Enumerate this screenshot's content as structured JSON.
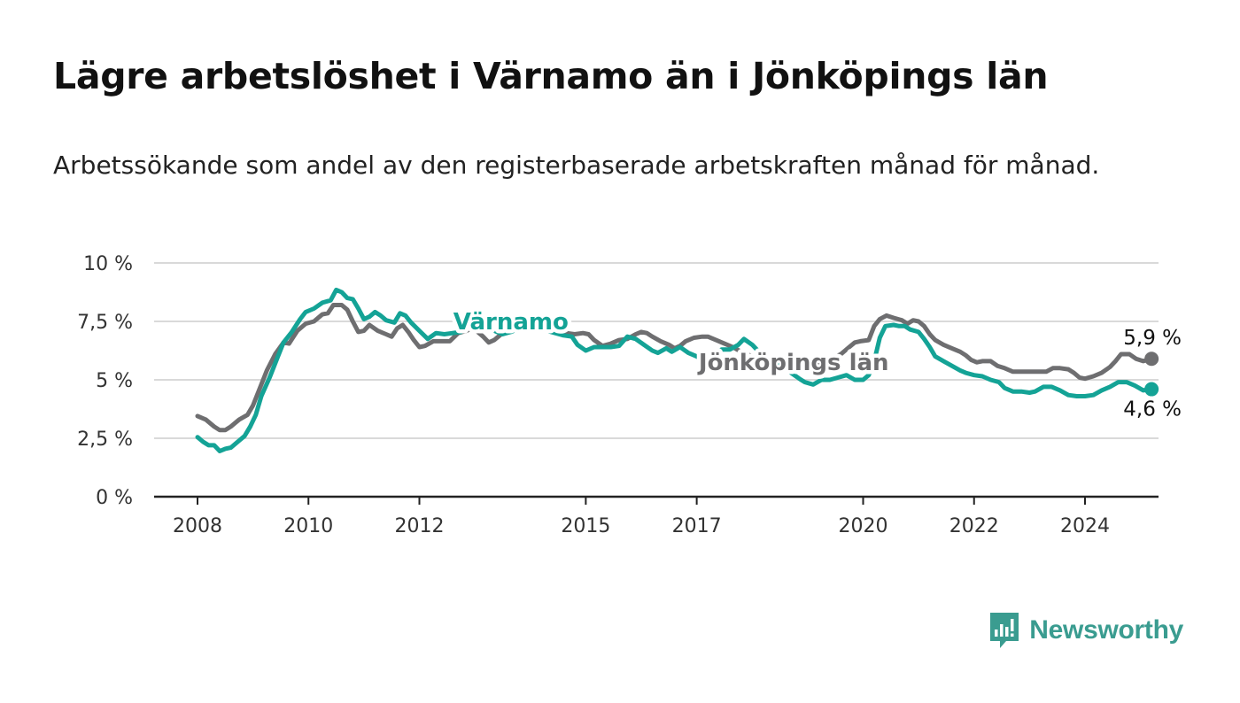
{
  "title": "Lägre arbetslöshet i Värnamo än i Jönköpings län",
  "subtitle": "Arbetssökande som andel av den registerbaserade arbetskraften månad för månad.",
  "brand": {
    "name": "Newsworthy",
    "color": "#3a9c90"
  },
  "chart_data": {
    "type": "line",
    "title": "Lägre arbetslöshet i Värnamo än i Jönköpings län",
    "subtitle": "Arbetssökande som andel av den registerbaserade arbetskraften månad för månad.",
    "xlabel": "",
    "ylabel": "",
    "ylim": [
      0,
      10
    ],
    "xlim": [
      2007.2,
      2025.35
    ],
    "grid": true,
    "y_ticks": [
      {
        "value": 0,
        "label": "0 %"
      },
      {
        "value": 2.5,
        "label": "2,5 %"
      },
      {
        "value": 5,
        "label": "5 %"
      },
      {
        "value": 7.5,
        "label": "7,5 %"
      },
      {
        "value": 10,
        "label": "10 %"
      }
    ],
    "x_ticks": [
      {
        "value": 2008,
        "label": "2008"
      },
      {
        "value": 2010,
        "label": "2010"
      },
      {
        "value": 2012,
        "label": "2012"
      },
      {
        "value": 2015,
        "label": "2015"
      },
      {
        "value": 2017,
        "label": "2017"
      },
      {
        "value": 2020,
        "label": "2020"
      },
      {
        "value": 2022,
        "label": "2022"
      },
      {
        "value": 2024,
        "label": "2024"
      }
    ],
    "series": [
      {
        "name": "Jönköpings län",
        "color": "#6e6e70",
        "end_label": "5,9 %",
        "points": [
          [
            2008.0,
            3.45
          ],
          [
            2008.15,
            3.3
          ],
          [
            2008.3,
            3.0
          ],
          [
            2008.4,
            2.85
          ],
          [
            2008.5,
            2.85
          ],
          [
            2008.6,
            3.0
          ],
          [
            2008.75,
            3.3
          ],
          [
            2008.9,
            3.5
          ],
          [
            2009.0,
            3.9
          ],
          [
            2009.1,
            4.5
          ],
          [
            2009.25,
            5.4
          ],
          [
            2009.4,
            6.1
          ],
          [
            2009.55,
            6.6
          ],
          [
            2009.65,
            6.55
          ],
          [
            2009.8,
            7.1
          ],
          [
            2009.95,
            7.4
          ],
          [
            2010.1,
            7.5
          ],
          [
            2010.25,
            7.8
          ],
          [
            2010.35,
            7.85
          ],
          [
            2010.45,
            8.2
          ],
          [
            2010.6,
            8.2
          ],
          [
            2010.7,
            8.0
          ],
          [
            2010.8,
            7.5
          ],
          [
            2010.9,
            7.05
          ],
          [
            2011.0,
            7.1
          ],
          [
            2011.1,
            7.35
          ],
          [
            2011.25,
            7.1
          ],
          [
            2011.4,
            6.95
          ],
          [
            2011.5,
            6.85
          ],
          [
            2011.6,
            7.2
          ],
          [
            2011.7,
            7.35
          ],
          [
            2011.8,
            7.05
          ],
          [
            2011.9,
            6.7
          ],
          [
            2012.0,
            6.4
          ],
          [
            2012.1,
            6.45
          ],
          [
            2012.25,
            6.65
          ],
          [
            2012.4,
            6.65
          ],
          [
            2012.55,
            6.65
          ],
          [
            2012.7,
            7.0
          ],
          [
            2012.85,
            7.1
          ],
          [
            2012.95,
            7.2
          ],
          [
            2013.05,
            7.05
          ],
          [
            2013.15,
            6.85
          ],
          [
            2013.25,
            6.6
          ],
          [
            2013.35,
            6.7
          ],
          [
            2013.5,
            7.0
          ],
          [
            2013.6,
            7.1
          ],
          [
            2013.75,
            7.15
          ],
          [
            2013.9,
            7.2
          ],
          [
            2014.05,
            7.25
          ],
          [
            2014.2,
            7.2
          ],
          [
            2014.35,
            7.15
          ],
          [
            2014.5,
            7.1
          ],
          [
            2014.65,
            7.0
          ],
          [
            2014.8,
            6.95
          ],
          [
            2014.95,
            7.0
          ],
          [
            2015.05,
            6.95
          ],
          [
            2015.15,
            6.7
          ],
          [
            2015.3,
            6.45
          ],
          [
            2015.45,
            6.55
          ],
          [
            2015.6,
            6.7
          ],
          [
            2015.75,
            6.75
          ],
          [
            2015.9,
            6.95
          ],
          [
            2016.0,
            7.05
          ],
          [
            2016.1,
            7.0
          ],
          [
            2016.2,
            6.85
          ],
          [
            2016.35,
            6.65
          ],
          [
            2016.5,
            6.5
          ],
          [
            2016.6,
            6.35
          ],
          [
            2016.7,
            6.45
          ],
          [
            2016.8,
            6.65
          ],
          [
            2016.95,
            6.8
          ],
          [
            2017.1,
            6.85
          ],
          [
            2017.2,
            6.85
          ],
          [
            2017.35,
            6.7
          ],
          [
            2017.5,
            6.55
          ],
          [
            2017.65,
            6.4
          ],
          [
            2017.8,
            6.2
          ],
          [
            2018.0,
            6.0
          ],
          [
            2018.2,
            5.85
          ],
          [
            2018.4,
            5.7
          ],
          [
            2018.6,
            5.55
          ],
          [
            2018.8,
            5.45
          ],
          [
            2019.0,
            5.5
          ],
          [
            2019.2,
            5.65
          ],
          [
            2019.4,
            5.85
          ],
          [
            2019.6,
            6.1
          ],
          [
            2019.75,
            6.4
          ],
          [
            2019.85,
            6.6
          ],
          [
            2019.95,
            6.65
          ],
          [
            2020.1,
            6.7
          ],
          [
            2020.2,
            7.3
          ],
          [
            2020.3,
            7.6
          ],
          [
            2020.42,
            7.75
          ],
          [
            2020.55,
            7.65
          ],
          [
            2020.7,
            7.55
          ],
          [
            2020.8,
            7.4
          ],
          [
            2020.9,
            7.55
          ],
          [
            2021.0,
            7.5
          ],
          [
            2021.1,
            7.3
          ],
          [
            2021.2,
            6.95
          ],
          [
            2021.3,
            6.7
          ],
          [
            2021.45,
            6.5
          ],
          [
            2021.6,
            6.35
          ],
          [
            2021.75,
            6.2
          ],
          [
            2021.85,
            6.05
          ],
          [
            2021.95,
            5.85
          ],
          [
            2022.05,
            5.75
          ],
          [
            2022.15,
            5.8
          ],
          [
            2022.3,
            5.8
          ],
          [
            2022.42,
            5.6
          ],
          [
            2022.55,
            5.5
          ],
          [
            2022.7,
            5.35
          ],
          [
            2022.85,
            5.35
          ],
          [
            2023.0,
            5.35
          ],
          [
            2023.15,
            5.35
          ],
          [
            2023.3,
            5.35
          ],
          [
            2023.42,
            5.5
          ],
          [
            2023.55,
            5.5
          ],
          [
            2023.7,
            5.45
          ],
          [
            2023.8,
            5.3
          ],
          [
            2023.9,
            5.1
          ],
          [
            2024.0,
            5.05
          ],
          [
            2024.15,
            5.15
          ],
          [
            2024.3,
            5.3
          ],
          [
            2024.45,
            5.55
          ],
          [
            2024.55,
            5.8
          ],
          [
            2024.65,
            6.1
          ],
          [
            2024.8,
            6.1
          ],
          [
            2024.92,
            5.9
          ],
          [
            2025.05,
            5.8
          ],
          [
            2025.2,
            5.9
          ]
        ]
      },
      {
        "name": "Värnamo",
        "color": "#14a396",
        "end_label": "4,6 %",
        "points": [
          [
            2008.0,
            2.55
          ],
          [
            2008.1,
            2.35
          ],
          [
            2008.2,
            2.2
          ],
          [
            2008.3,
            2.2
          ],
          [
            2008.4,
            1.95
          ],
          [
            2008.5,
            2.05
          ],
          [
            2008.6,
            2.1
          ],
          [
            2008.75,
            2.4
          ],
          [
            2008.85,
            2.6
          ],
          [
            2008.95,
            3.0
          ],
          [
            2009.05,
            3.5
          ],
          [
            2009.15,
            4.3
          ],
          [
            2009.3,
            5.1
          ],
          [
            2009.45,
            6.0
          ],
          [
            2009.55,
            6.6
          ],
          [
            2009.7,
            7.05
          ],
          [
            2009.85,
            7.6
          ],
          [
            2009.95,
            7.9
          ],
          [
            2010.1,
            8.05
          ],
          [
            2010.25,
            8.3
          ],
          [
            2010.4,
            8.4
          ],
          [
            2010.5,
            8.85
          ],
          [
            2010.6,
            8.75
          ],
          [
            2010.7,
            8.5
          ],
          [
            2010.8,
            8.45
          ],
          [
            2010.9,
            8.05
          ],
          [
            2011.0,
            7.6
          ],
          [
            2011.1,
            7.7
          ],
          [
            2011.2,
            7.9
          ],
          [
            2011.3,
            7.75
          ],
          [
            2011.4,
            7.55
          ],
          [
            2011.55,
            7.45
          ],
          [
            2011.65,
            7.85
          ],
          [
            2011.75,
            7.75
          ],
          [
            2011.85,
            7.45
          ],
          [
            2012.0,
            7.1
          ],
          [
            2012.15,
            6.75
          ],
          [
            2012.3,
            7.0
          ],
          [
            2012.45,
            6.95
          ],
          [
            2012.6,
            7.0
          ],
          [
            2012.75,
            7.05
          ],
          [
            2012.9,
            7.35
          ],
          [
            2013.05,
            7.25
          ],
          [
            2013.2,
            7.2
          ],
          [
            2013.35,
            7.1
          ],
          [
            2013.5,
            6.95
          ],
          [
            2013.65,
            7.05
          ],
          [
            2013.8,
            7.2
          ],
          [
            2014.0,
            7.3
          ],
          [
            2014.15,
            7.2
          ],
          [
            2014.3,
            7.1
          ],
          [
            2014.45,
            7.0
          ],
          [
            2014.6,
            6.9
          ],
          [
            2014.75,
            6.85
          ],
          [
            2014.85,
            6.5
          ],
          [
            2015.0,
            6.25
          ],
          [
            2015.15,
            6.4
          ],
          [
            2015.3,
            6.4
          ],
          [
            2015.45,
            6.4
          ],
          [
            2015.6,
            6.45
          ],
          [
            2015.75,
            6.85
          ],
          [
            2015.9,
            6.75
          ],
          [
            2016.05,
            6.5
          ],
          [
            2016.2,
            6.25
          ],
          [
            2016.3,
            6.15
          ],
          [
            2016.45,
            6.35
          ],
          [
            2016.55,
            6.2
          ],
          [
            2016.7,
            6.4
          ],
          [
            2016.85,
            6.15
          ],
          [
            2017.0,
            6.0
          ],
          [
            2017.15,
            5.8
          ],
          [
            2017.3,
            6.0
          ],
          [
            2017.45,
            6.3
          ],
          [
            2017.6,
            6.3
          ],
          [
            2017.75,
            6.5
          ],
          [
            2017.85,
            6.75
          ],
          [
            2018.0,
            6.5
          ],
          [
            2018.2,
            6.0
          ],
          [
            2018.4,
            5.7
          ],
          [
            2018.55,
            5.55
          ],
          [
            2018.7,
            5.3
          ],
          [
            2018.85,
            5.05
          ],
          [
            2018.95,
            4.9
          ],
          [
            2019.1,
            4.8
          ],
          [
            2019.25,
            5.0
          ],
          [
            2019.4,
            5.0
          ],
          [
            2019.55,
            5.1
          ],
          [
            2019.7,
            5.2
          ],
          [
            2019.85,
            5.0
          ],
          [
            2020.0,
            5.0
          ],
          [
            2020.1,
            5.2
          ],
          [
            2020.2,
            5.8
          ],
          [
            2020.3,
            6.8
          ],
          [
            2020.4,
            7.3
          ],
          [
            2020.55,
            7.35
          ],
          [
            2020.65,
            7.3
          ],
          [
            2020.75,
            7.3
          ],
          [
            2020.85,
            7.15
          ],
          [
            2021.0,
            7.05
          ],
          [
            2021.1,
            6.75
          ],
          [
            2021.2,
            6.4
          ],
          [
            2021.3,
            6.0
          ],
          [
            2021.45,
            5.8
          ],
          [
            2021.6,
            5.6
          ],
          [
            2021.75,
            5.4
          ],
          [
            2021.85,
            5.3
          ],
          [
            2022.0,
            5.2
          ],
          [
            2022.15,
            5.15
          ],
          [
            2022.3,
            5.0
          ],
          [
            2022.45,
            4.9
          ],
          [
            2022.55,
            4.65
          ],
          [
            2022.7,
            4.5
          ],
          [
            2022.85,
            4.5
          ],
          [
            2023.0,
            4.45
          ],
          [
            2023.1,
            4.5
          ],
          [
            2023.25,
            4.7
          ],
          [
            2023.4,
            4.7
          ],
          [
            2023.55,
            4.55
          ],
          [
            2023.7,
            4.35
          ],
          [
            2023.85,
            4.3
          ],
          [
            2024.0,
            4.3
          ],
          [
            2024.15,
            4.35
          ],
          [
            2024.3,
            4.55
          ],
          [
            2024.45,
            4.7
          ],
          [
            2024.6,
            4.9
          ],
          [
            2024.75,
            4.9
          ],
          [
            2024.9,
            4.75
          ],
          [
            2025.05,
            4.55
          ],
          [
            2025.2,
            4.6
          ]
        ]
      }
    ],
    "series_labels": [
      {
        "series": "Värnamo",
        "text": "Värnamo",
        "x": 2013.65,
        "y": 7.5
      },
      {
        "series": "Jönköpings län",
        "text": "Jönköpings län",
        "x": 2018.75,
        "y": 5.75
      }
    ]
  }
}
